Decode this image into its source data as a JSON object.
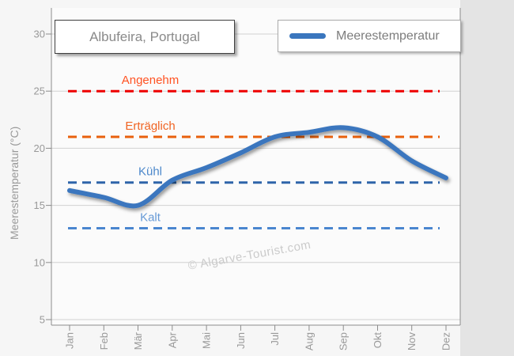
{
  "title": "Albufeira, Portugal",
  "legend": {
    "label": "Meerestemperatur"
  },
  "watermark": "© Algarve-Tourist.com",
  "colors": {
    "line": "#3a76be",
    "grid": "#d2d2d2",
    "axis": "#8c8c8c",
    "tick_text": "#999999",
    "plot_bg": "#fbfbfb",
    "outer_bg": "#e4e4e4"
  },
  "chart_data": {
    "type": "line",
    "categories": [
      "Jan",
      "Feb",
      "Mär",
      "Apr",
      "Mai",
      "Jun",
      "Jul",
      "Aug",
      "Sep",
      "Okt",
      "Nov",
      "Dez"
    ],
    "series": [
      {
        "name": "Meerestemperatur",
        "color": "#3a76be",
        "values": [
          16.3,
          15.7,
          15.0,
          17.2,
          18.3,
          19.6,
          21.0,
          21.4,
          21.8,
          21.0,
          18.9,
          17.4
        ]
      }
    ],
    "title": "Albufeira, Portugal",
    "xlabel": "",
    "ylabel": "Meerestemperatur (°C)",
    "ylim": [
      5,
      31
    ],
    "yticks": [
      5,
      10,
      15,
      20,
      25,
      30
    ],
    "grid": "horizontal",
    "legend_position": "top-right",
    "thresholds": [
      {
        "label": "Angenehm",
        "value": 25,
        "line_color": "#ee0000",
        "label_color": "#ff5222"
      },
      {
        "label": "Erträglich",
        "value": 21,
        "line_color": "#e8600c",
        "label_color": "#f06423"
      },
      {
        "label": "Kühl",
        "value": 17,
        "line_color": "#2e64a9",
        "label_color": "#4c88cb"
      },
      {
        "label": "Kalt",
        "value": 13,
        "line_color": "#4a86cf",
        "label_color": "#6699d6"
      }
    ]
  }
}
